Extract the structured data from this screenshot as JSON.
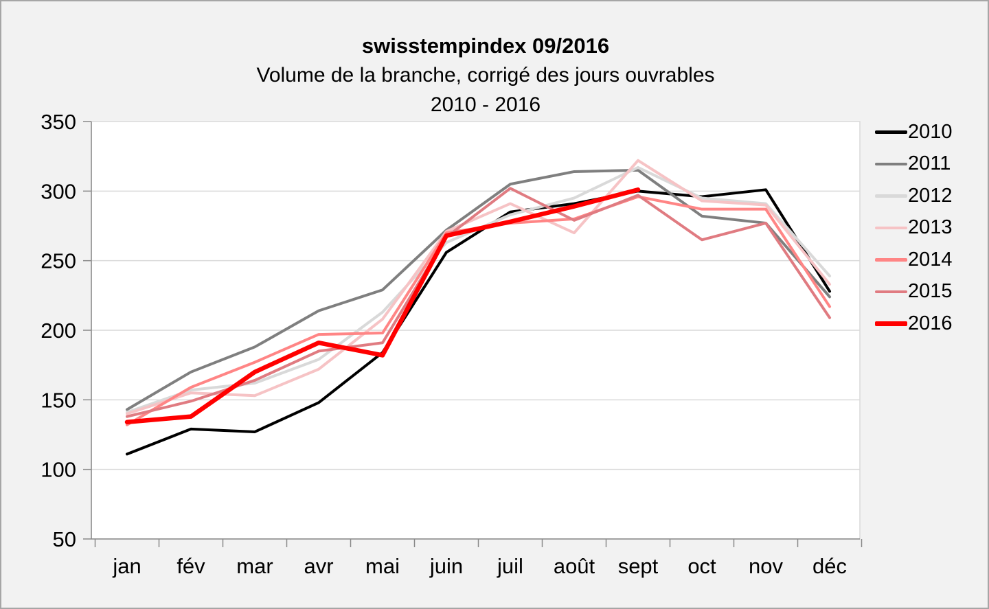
{
  "window": {
    "background": "#F2F2F2",
    "border_color": "#A6A6A6",
    "plot_background": "#FFFFFF",
    "gridline_color": "#D9D9D9",
    "axis_color": "#898989",
    "text_color": "#000000"
  },
  "chart_data": {
    "type": "line",
    "title": "swisstempindex 09/2016",
    "subtitle": "Volume de la branche, corrigé des jours ouvrables",
    "period": "2010 - 2016",
    "xlabel": "",
    "ylabel": "",
    "ylim": [
      50,
      350
    ],
    "yticks": [
      350,
      300,
      250,
      200,
      150,
      100,
      50
    ],
    "grid": true,
    "legend_position": "right",
    "categories": [
      "jan",
      "fév",
      "mar",
      "avr",
      "mai",
      "juin",
      "juil",
      "août",
      "sept",
      "oct",
      "nov",
      "déc"
    ],
    "series": [
      {
        "name": "2010",
        "color": "#000000",
        "width": 4,
        "values": [
          111,
          129,
          127,
          148,
          184,
          256,
          285,
          291,
          300,
          296,
          301,
          228
        ]
      },
      {
        "name": "2011",
        "color": "#7F7F7F",
        "width": 4,
        "values": [
          143,
          170,
          188,
          214,
          229,
          272,
          305,
          314,
          315,
          282,
          277,
          224
        ]
      },
      {
        "name": "2012",
        "color": "#D9D9D9",
        "width": 4,
        "values": [
          141,
          157,
          162,
          179,
          213,
          263,
          283,
          295,
          317,
          295,
          291,
          239
        ]
      },
      {
        "name": "2013",
        "color": "#F6C3C5",
        "width": 4,
        "values": [
          140,
          155,
          153,
          172,
          208,
          271,
          291,
          270,
          322,
          293,
          290,
          233
        ]
      },
      {
        "name": "2014",
        "color": "#FF8585",
        "width": 4,
        "values": [
          132,
          159,
          177,
          197,
          198,
          270,
          277,
          280,
          296,
          287,
          287,
          217
        ]
      },
      {
        "name": "2015",
        "color": "#E07B81",
        "width": 4,
        "values": [
          138,
          149,
          164,
          185,
          191,
          267,
          302,
          279,
          297,
          265,
          277,
          209
        ]
      },
      {
        "name": "2016",
        "color": "#FF0000",
        "width": 6.5,
        "values": [
          134,
          138,
          170,
          191,
          182,
          268,
          278,
          289,
          301,
          null,
          null,
          null
        ]
      }
    ]
  }
}
